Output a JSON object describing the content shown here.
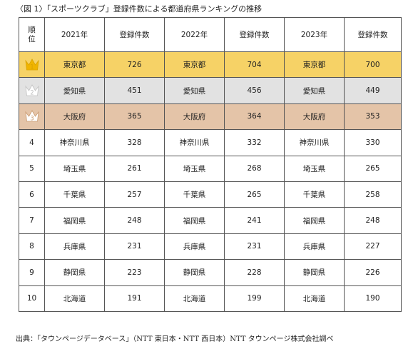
{
  "caption": "〈図 1〉「スポーツクラブ」登録件数による都道府県ランキングの推移",
  "table": {
    "headers": {
      "rank": "順位",
      "y2021": "2021年",
      "c2021": "登録件数",
      "y2022": "2022年",
      "c2022": "登録件数",
      "y2023": "2023年",
      "c2023": "登録件数"
    },
    "rows": [
      {
        "rank": "1",
        "p2021": "東京都",
        "c2021": "726",
        "p2022": "東京都",
        "c2022": "704",
        "p2023": "東京都",
        "c2023": "700"
      },
      {
        "rank": "2",
        "p2021": "愛知県",
        "c2021": "451",
        "p2022": "愛知県",
        "c2022": "456",
        "p2023": "愛知県",
        "c2023": "449"
      },
      {
        "rank": "3",
        "p2021": "大阪府",
        "c2021": "365",
        "p2022": "大阪府",
        "c2022": "364",
        "p2023": "大阪府",
        "c2023": "353"
      },
      {
        "rank": "4",
        "p2021": "神奈川県",
        "c2021": "328",
        "p2022": "神奈川県",
        "c2022": "332",
        "p2023": "神奈川県",
        "c2023": "330"
      },
      {
        "rank": "5",
        "p2021": "埼玉県",
        "c2021": "261",
        "p2022": "埼玉県",
        "c2022": "268",
        "p2023": "埼玉県",
        "c2023": "265"
      },
      {
        "rank": "6",
        "p2021": "千葉県",
        "c2021": "257",
        "p2022": "千葉県",
        "c2022": "265",
        "p2023": "千葉県",
        "c2023": "258"
      },
      {
        "rank": "7",
        "p2021": "福岡県",
        "c2021": "248",
        "p2022": "福岡県",
        "c2022": "241",
        "p2023": "福岡県",
        "c2023": "248"
      },
      {
        "rank": "8",
        "p2021": "兵庫県",
        "c2021": "231",
        "p2022": "兵庫県",
        "c2022": "231",
        "p2023": "兵庫県",
        "c2023": "227"
      },
      {
        "rank": "9",
        "p2021": "静岡県",
        "c2021": "223",
        "p2022": "静岡県",
        "c2022": "228",
        "p2023": "静岡県",
        "c2023": "226"
      },
      {
        "rank": "10",
        "p2021": "北海道",
        "c2021": "191",
        "p2022": "北海道",
        "c2022": "199",
        "p2023": "北海道",
        "c2023": "190"
      }
    ]
  },
  "crowns": [
    {
      "rank": "1",
      "icon": "gold-crown-icon",
      "color": "#f0b400"
    },
    {
      "rank": "2",
      "icon": "silver-crown-icon",
      "color": "#ffffff"
    },
    {
      "rank": "3",
      "icon": "bronze-crown-icon",
      "color": "#ffffff"
    }
  ],
  "colors": {
    "rank1_row": "#f6d266",
    "rank2_row": "#e2e2e2",
    "rank3_row": "#e4c4a8"
  },
  "source": "出典：「タウンページデータベース」（NTT 東日本・NTT 西日本）NTT タウンページ株式会社調べ"
}
